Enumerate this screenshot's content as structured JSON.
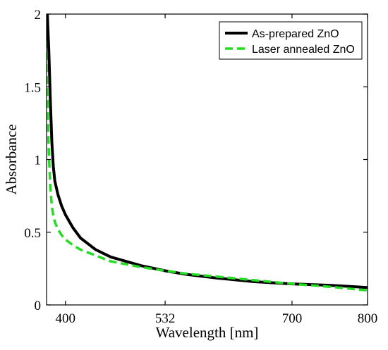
{
  "chart_data": {
    "type": "line",
    "title": "",
    "xlabel": "Wavelength [nm]",
    "ylabel": "Absorbance",
    "xlim": [
      375,
      800
    ],
    "ylim": [
      0,
      2
    ],
    "xticks": [
      400,
      532,
      700,
      800
    ],
    "yticks": [
      0,
      0.5,
      1,
      1.5,
      2
    ],
    "ytick_labels": [
      "0",
      "0.5",
      "1",
      "1.5",
      "2"
    ],
    "grid": false,
    "legend_position": "top-right",
    "series": [
      {
        "name": "As-prepared ZnO",
        "color": "#000000",
        "dash": "solid",
        "x": [
          376,
          378,
          380,
          382,
          384,
          386,
          390,
          395,
          400,
          410,
          420,
          440,
          460,
          480,
          500,
          532,
          560,
          600,
          650,
          700,
          750,
          800
        ],
        "y": [
          2.0,
          1.75,
          1.4,
          1.12,
          0.95,
          0.85,
          0.76,
          0.68,
          0.62,
          0.53,
          0.46,
          0.38,
          0.33,
          0.3,
          0.27,
          0.235,
          0.21,
          0.185,
          0.16,
          0.145,
          0.135,
          0.12
        ]
      },
      {
        "name": "Laser annealed ZnO",
        "color": "#22dd22",
        "dash": "dashed",
        "x": [
          374,
          376,
          378,
          380,
          382,
          384,
          386,
          390,
          395,
          400,
          410,
          420,
          440,
          460,
          480,
          500,
          532,
          560,
          600,
          650,
          700,
          750,
          800
        ],
        "y": [
          1.82,
          1.45,
          1.05,
          0.8,
          0.68,
          0.61,
          0.57,
          0.52,
          0.48,
          0.45,
          0.41,
          0.38,
          0.34,
          0.3,
          0.28,
          0.26,
          0.235,
          0.215,
          0.195,
          0.17,
          0.145,
          0.125,
          0.1
        ]
      }
    ]
  }
}
